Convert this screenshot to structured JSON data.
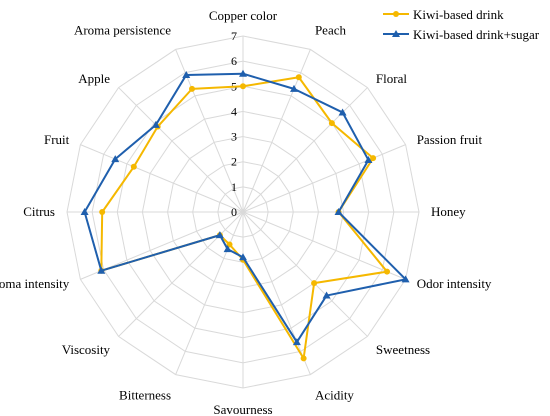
{
  "chart_data": {
    "type": "radar",
    "categories": [
      "Copper color",
      "Peach",
      "Floral",
      "Passion fruit",
      "Honey",
      "Odor intensity",
      "Sweetness",
      "Acidity",
      "Savourness",
      "Bitterness",
      "Viscosity",
      "Aroma intensity",
      "Citrus",
      "Fruit",
      "Apple",
      "Aroma persistence"
    ],
    "series": [
      {
        "name": "Kiwi-based drink",
        "color": "#F5B800",
        "marker": "circle",
        "values": [
          5.0,
          5.8,
          5.0,
          5.6,
          3.8,
          6.2,
          4.0,
          6.3,
          1.9,
          1.4,
          1.3,
          6.1,
          5.6,
          4.7,
          4.8,
          5.3
        ]
      },
      {
        "name": "Kiwi-based drink+sugar",
        "color": "#1F5FAD",
        "marker": "triangle",
        "values": [
          5.5,
          5.3,
          5.6,
          5.4,
          3.8,
          7.0,
          4.7,
          5.6,
          1.8,
          1.6,
          1.3,
          6.1,
          6.3,
          5.5,
          4.9,
          5.9
        ]
      }
    ],
    "radial_ticks": [
      0,
      1,
      2,
      3,
      4,
      5,
      6,
      7
    ],
    "rlim": [
      0,
      7
    ],
    "grid": true,
    "legend_position": "top-right"
  }
}
